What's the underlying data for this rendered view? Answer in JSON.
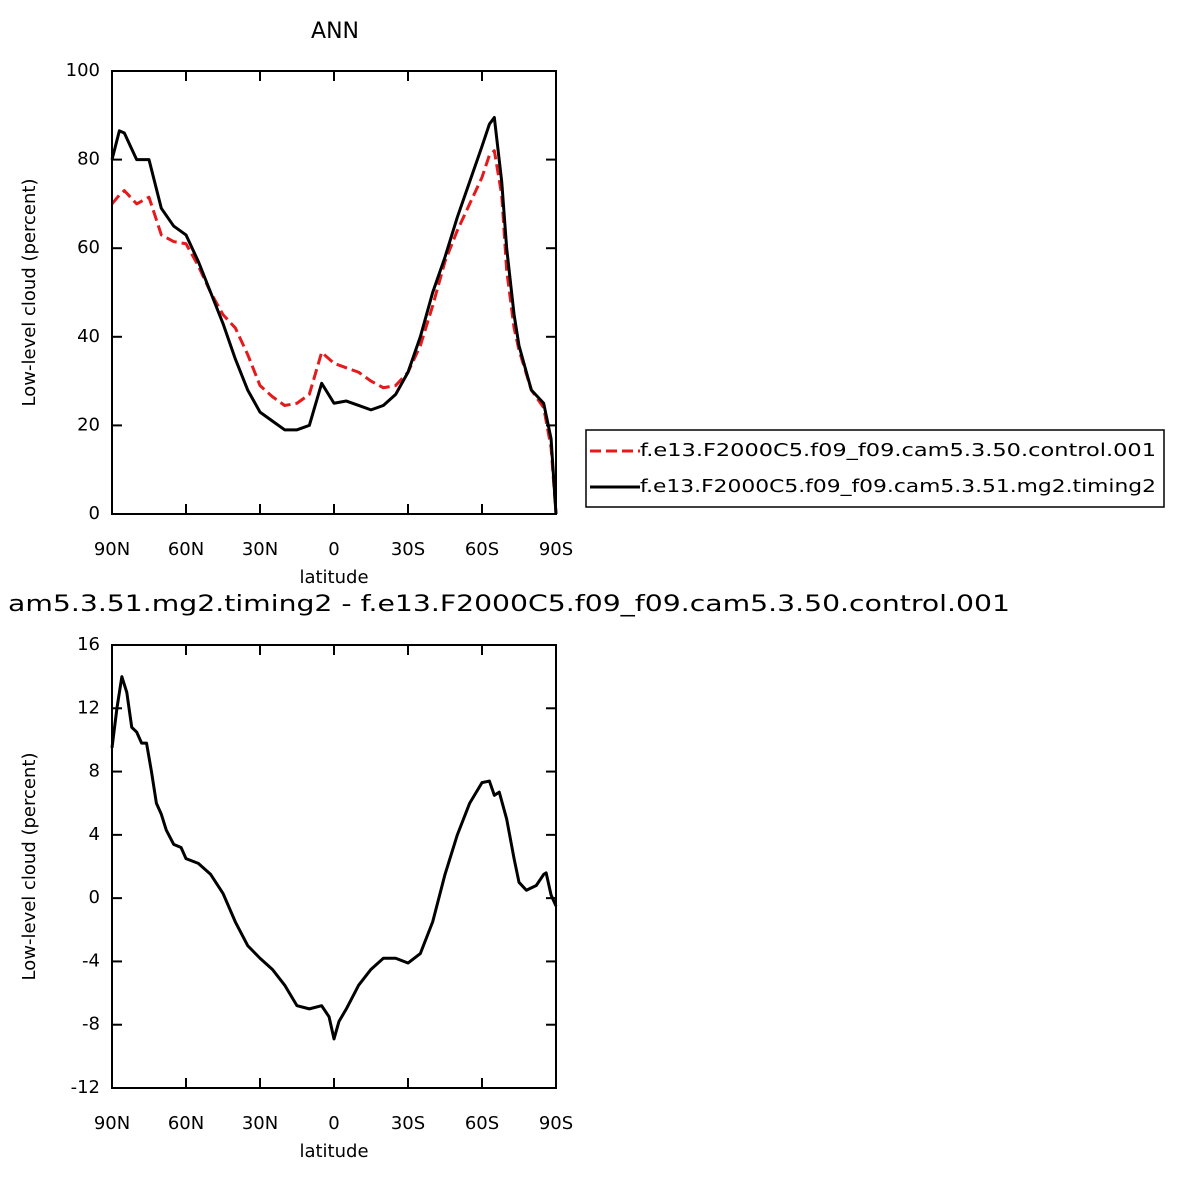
{
  "chart_data": [
    {
      "type": "line",
      "title": "ANN",
      "xlabel": "latitude",
      "ylabel": "Low-level cloud (percent)",
      "x": [
        90,
        87,
        85,
        80,
        75,
        70,
        65,
        60,
        55,
        50,
        45,
        40,
        35,
        30,
        25,
        20,
        15,
        10,
        5,
        0,
        -5,
        -10,
        -15,
        -20,
        -25,
        -30,
        -35,
        -40,
        -45,
        -50,
        -55,
        -60,
        -63,
        -65,
        -68,
        -70,
        -73,
        -75,
        -80,
        -85,
        -88,
        -90
      ],
      "series": [
        {
          "name": "f.e13.F2000C5.f09_f09.cam5.3.50.control.001",
          "color": "#e41a1c",
          "style": "dashed",
          "values": [
            70,
            72,
            73,
            70,
            71.5,
            63,
            61.5,
            61,
            56,
            50,
            45,
            42,
            36,
            29,
            26.5,
            24.5,
            25,
            27,
            36.5,
            34,
            33,
            32,
            30,
            28.5,
            29,
            32,
            38,
            47,
            57,
            64,
            70,
            76,
            81,
            82,
            72,
            55,
            42,
            37,
            28,
            24,
            15,
            0
          ]
        },
        {
          "name": "f.e13.F2000C5.f09_f09.cam5.3.51.mg2.timing2",
          "color": "#000000",
          "style": "solid",
          "values": [
            80,
            86.5,
            86,
            80,
            80,
            69,
            65,
            63,
            57,
            50,
            43,
            35,
            28,
            23,
            21,
            19,
            19,
            20,
            29.5,
            25,
            25.5,
            24.5,
            23.5,
            24.5,
            27,
            32,
            40,
            50,
            58,
            67,
            75,
            83,
            88,
            89.5,
            75,
            60,
            45,
            38,
            28,
            25,
            17,
            0
          ]
        }
      ],
      "xlim": [
        90,
        -90
      ],
      "xticks": [
        {
          "value": 90,
          "label": "90N"
        },
        {
          "value": 60,
          "label": "60N"
        },
        {
          "value": 30,
          "label": "30N"
        },
        0,
        {
          "value": -30,
          "label": "30S"
        },
        {
          "value": -60,
          "label": "60S"
        },
        {
          "value": -90,
          "label": "90S"
        }
      ],
      "ylim": [
        0,
        100
      ],
      "yticks": [
        0,
        20,
        40,
        60,
        80,
        100
      ],
      "legend": "right"
    },
    {
      "type": "line",
      "title": "am5.3.51.mg2.timing2 - f.e13.F2000C5.f09_f09.cam5.3.50.control.001",
      "xlabel": "latitude",
      "ylabel": "Low-level cloud (percent)",
      "x": [
        90,
        88,
        86,
        84,
        82,
        80,
        78,
        76,
        74,
        72,
        70,
        68,
        65,
        62,
        60,
        55,
        50,
        45,
        40,
        35,
        30,
        25,
        20,
        15,
        10,
        5,
        2,
        0,
        -2,
        -5,
        -10,
        -15,
        -20,
        -25,
        -30,
        -35,
        -40,
        -45,
        -50,
        -55,
        -60,
        -63,
        -65,
        -67,
        -70,
        -73,
        -75,
        -78,
        -82,
        -85,
        -86,
        -88,
        -90
      ],
      "series": [
        {
          "color": "#000000",
          "style": "solid",
          "values": [
            9.5,
            12,
            14,
            13,
            10.8,
            10.5,
            9.8,
            9.8,
            8,
            6,
            5.3,
            4.3,
            3.4,
            3.2,
            2.5,
            2.2,
            1.5,
            0.3,
            -1.5,
            -3,
            -3.8,
            -4.5,
            -5.5,
            -6.8,
            -7,
            -6.8,
            -7.5,
            -8.9,
            -7.8,
            -7,
            -5.5,
            -4.5,
            -3.8,
            -3.8,
            -4.1,
            -3.5,
            -1.5,
            1.5,
            4,
            6,
            7.3,
            7.4,
            6.5,
            6.7,
            5,
            2.5,
            1,
            0.5,
            0.8,
            1.5,
            1.6,
            0.2,
            -0.5
          ]
        }
      ],
      "xlim": [
        90,
        -90
      ],
      "xticks": [
        {
          "value": 90,
          "label": "90N"
        },
        {
          "value": 60,
          "label": "60N"
        },
        {
          "value": 30,
          "label": "30N"
        },
        0,
        {
          "value": -30,
          "label": "30S"
        },
        {
          "value": -60,
          "label": "60S"
        },
        {
          "value": -90,
          "label": "90S"
        }
      ],
      "ylim": [
        -12,
        16
      ],
      "yticks": [
        -12,
        -8,
        -4,
        0,
        4,
        8,
        12,
        16
      ]
    }
  ]
}
